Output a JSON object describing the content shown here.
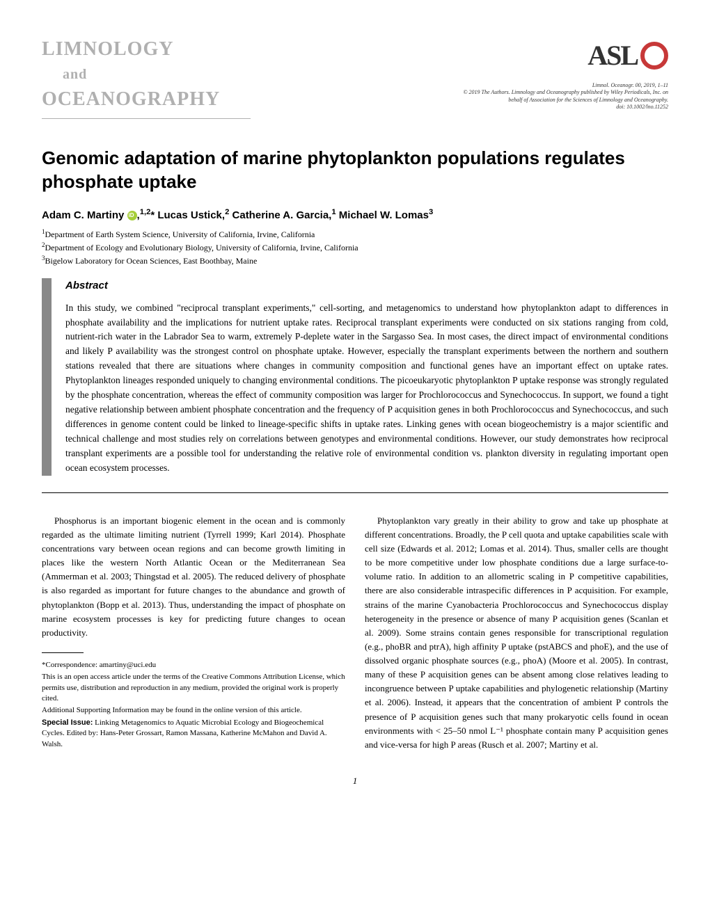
{
  "journal": {
    "logo_line1": "LIMNOLOGY",
    "logo_line2": "and",
    "logo_line3": "OCEANOGRAPHY",
    "aslo": "ASL"
  },
  "citation": {
    "line1": "Limnol. Oceanogr. 00, 2019, 1–11",
    "line2": "© 2019 The Authors. Limnology and Oceanography published by Wiley Periodicals, Inc. on",
    "line3": "behalf of Association for the Sciences of Limnology and Oceanography.",
    "line4": "doi: 10.1002/lno.11252"
  },
  "title": "Genomic adaptation of marine phytoplankton populations regulates phosphate uptake",
  "authors": {
    "a1_name": "Adam C. Martiny ",
    "a1_sup": "1,2",
    "a1_star": "*",
    "a2_name": " Lucas Ustick,",
    "a2_sup": "2",
    "a3_name": " Catherine A. Garcia,",
    "a3_sup": "1",
    "a4_name": " Michael W. Lomas",
    "a4_sup": "3"
  },
  "affiliations": {
    "l1": "Department of Earth System Science, University of California, Irvine, California",
    "l2": "Department of Ecology and Evolutionary Biology, University of California, Irvine, California",
    "l3": "Bigelow Laboratory for Ocean Sciences, East Boothbay, Maine"
  },
  "abstract": {
    "heading": "Abstract",
    "text": "In this study, we combined \"reciprocal transplant experiments,\" cell-sorting, and metagenomics to understand how phytoplankton adapt to differences in phosphate availability and the implications for nutrient uptake rates. Reciprocal transplant experiments were conducted on six stations ranging from cold, nutrient-rich water in the Labrador Sea to warm, extremely P-deplete water in the Sargasso Sea. In most cases, the direct impact of environmental conditions and likely P availability was the strongest control on phosphate uptake. However, especially the transplant experiments between the northern and southern stations revealed that there are situations where changes in community composition and functional genes have an important effect on uptake rates. Phytoplankton lineages responded uniquely to changing environmental conditions. The picoeukaryotic phytoplankton P uptake response was strongly regulated by the phosphate concentration, whereas the effect of community composition was larger for Prochlorococcus and Synechococcus. In support, we found a tight negative relationship between ambient phosphate concentration and the frequency of P acquisition genes in both Prochlorococcus and Synechococcus, and such differences in genome content could be linked to lineage-specific shifts in uptake rates. Linking genes with ocean biogeochemistry is a major scientific and technical challenge and most studies rely on correlations between genotypes and environmental conditions. However, our study demonstrates how reciprocal transplant experiments are a possible tool for understanding the relative role of environmental condition vs. plankton diversity in regulating important open ocean ecosystem processes."
  },
  "body": {
    "left_p1": "Phosphorus is an important biogenic element in the ocean and is commonly regarded as the ultimate limiting nutrient (Tyrrell 1999; Karl 2014). Phosphate concentrations vary between ocean regions and can become growth limiting in places like the western North Atlantic Ocean or the Mediterranean Sea (Ammerman et al. 2003; Thingstad et al. 2005). The reduced delivery of phosphate is also regarded as important for future changes to the abundance and growth of phytoplankton (Bopp et al. 2013). Thus, understanding the impact of phosphate on marine ecosystem processes is key for predicting future changes to ocean productivity.",
    "right_p1": "Phytoplankton vary greatly in their ability to grow and take up phosphate at different concentrations. Broadly, the P cell quota and uptake capabilities scale with cell size (Edwards et al. 2012; Lomas et al. 2014). Thus, smaller cells are thought to be more competitive under low phosphate conditions due a large surface-to-volume ratio. In addition to an allometric scaling in P competitive capabilities, there are also considerable intraspecific differences in P acquisition. For example, strains of the marine Cyanobacteria Prochlorococcus and Synechococcus display heterogeneity in the presence or absence of many P acquisition genes (Scanlan et al. 2009). Some strains contain genes responsible for transcriptional regulation (e.g., phoBR and ptrA), high affinity P uptake (pstABCS and phoE), and the use of dissolved organic phosphate sources (e.g., phoA) (Moore et al. 2005). In contrast, many of these P acquisition genes can be absent among close relatives leading to incongruence between P uptake capabilities and phylogenetic relationship (Martiny et al. 2006). Instead, it appears that the concentration of ambient P controls the presence of P acquisition genes such that many prokaryotic cells found in ocean environments with < 25–50 nmol L⁻¹ phosphate contain many P acquisition genes and vice-versa for high P areas (Rusch et al. 2007; Martiny et al."
  },
  "footnotes": {
    "correspondence": "*Correspondence: amartiny@uci.edu",
    "open_access": "This is an open access article under the terms of the Creative Commons Attribution License, which permits use, distribution and reproduction in any medium, provided the original work is properly cited.",
    "supporting": "Additional Supporting Information may be found in the online version of this article.",
    "special_label": "Special Issue:",
    "special_text": " Linking Metagenomics to Aquatic Microbial Ecology and Biogeochemical Cycles. Edited by: Hans-Peter Grossart, Ramon Massana, Katherine McMahon and David A. Walsh."
  },
  "page_number": "1"
}
